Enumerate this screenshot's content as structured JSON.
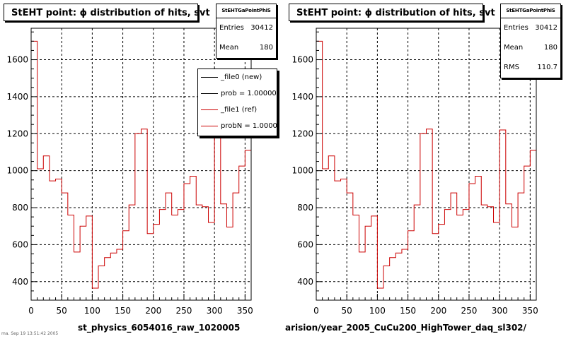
{
  "chart_data": [
    {
      "type": "bar",
      "title": "StEHT point:  ϕ distribution of hits, svt",
      "xlabel": "st_physics_6054016_raw_1020005",
      "ylabel": "",
      "xlim": [
        0,
        360
      ],
      "ylim": [
        300,
        1770
      ],
      "grid": true,
      "x_ticks": [
        0,
        50,
        100,
        150,
        200,
        250,
        300,
        350
      ],
      "y_ticks": [
        400,
        600,
        800,
        1000,
        1200,
        1400,
        1600
      ],
      "bin_width": 10,
      "series": [
        {
          "name": "_file1 (ref)",
          "color": "#cc0000",
          "values": [
            1700,
            1010,
            1080,
            945,
            955,
            880,
            760,
            560,
            700,
            755,
            365,
            485,
            530,
            555,
            575,
            675,
            815,
            1200,
            1225,
            660,
            710,
            790,
            880,
            760,
            790,
            930,
            970,
            815,
            805,
            720,
            1220,
            820,
            695,
            880,
            1025,
            1110
          ]
        }
      ],
      "stats": {
        "name": "StEHTGaPointPhiS",
        "entries_label": "Entries",
        "entries": "30412",
        "mean_label": "Mean",
        "mean": "180"
      },
      "legend": [
        {
          "label": "_file0 (new)",
          "color": "#000000"
        },
        {
          "label": "prob = 1.000000",
          "color": "#000000"
        },
        {
          "label": "_file1 (ref)",
          "color": "#cc0000"
        },
        {
          "label": "probN = 1.000000",
          "color": "#cc0000"
        }
      ],
      "legend_placement": "top-right"
    },
    {
      "type": "bar",
      "title": "StEHT point:  ϕ distribution of hits, svt",
      "xlabel": "arision/year_2005_CuCu200_HighTower_daq_sl302/",
      "ylabel": "",
      "xlim": [
        0,
        360
      ],
      "ylim": [
        300,
        1770
      ],
      "grid": true,
      "x_ticks": [
        0,
        50,
        100,
        150,
        200,
        250,
        300,
        350
      ],
      "y_ticks": [
        400,
        600,
        800,
        1000,
        1200,
        1400,
        1600
      ],
      "bin_width": 10,
      "series": [
        {
          "name": "",
          "color": "#cc0000",
          "values": [
            1700,
            1010,
            1080,
            945,
            955,
            880,
            760,
            560,
            700,
            755,
            365,
            485,
            530,
            555,
            575,
            675,
            815,
            1200,
            1225,
            660,
            710,
            790,
            880,
            760,
            790,
            930,
            970,
            815,
            805,
            720,
            1220,
            820,
            695,
            880,
            1025,
            1110
          ]
        }
      ],
      "stats": {
        "name": "StEHTGaPointPhiS",
        "entries_label": "Entries",
        "entries": "30412",
        "mean_label": "Mean",
        "mean": "180",
        "rms_label": "RMS",
        "rms": "110.7"
      }
    }
  ],
  "footnote": "ma. Sep 19 13:51:42 2005"
}
